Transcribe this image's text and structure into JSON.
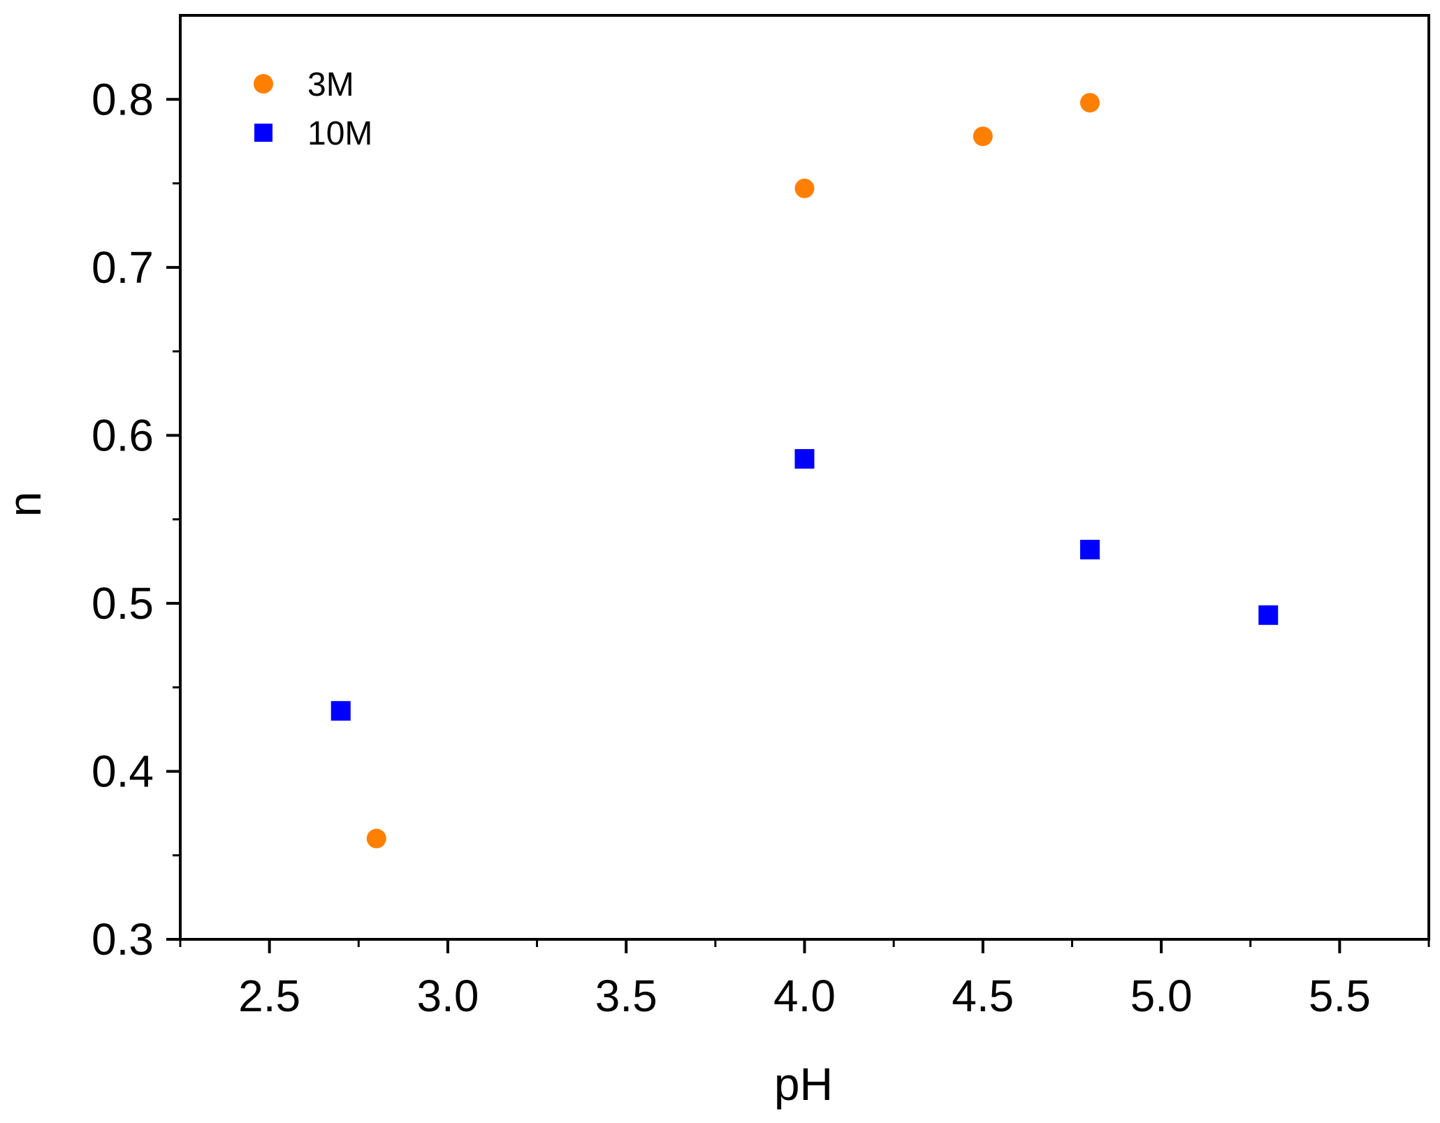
{
  "chart_data": {
    "type": "scatter",
    "xlabel": "pH",
    "ylabel": "n",
    "xlim": [
      2.25,
      5.75
    ],
    "ylim": [
      0.3,
      0.85
    ],
    "x_ticks": [
      "2.5",
      "3.0",
      "3.5",
      "4.0",
      "4.5",
      "5.0",
      "5.5"
    ],
    "y_ticks": [
      "0.3",
      "0.4",
      "0.5",
      "0.6",
      "0.7",
      "0.8"
    ],
    "grid": false,
    "legend_position": "top-left",
    "series": [
      {
        "name": "3M",
        "marker": "circle",
        "color": "#ff8000",
        "points": [
          {
            "x": 2.8,
            "y": 0.36
          },
          {
            "x": 4.0,
            "y": 0.747
          },
          {
            "x": 4.5,
            "y": 0.778
          },
          {
            "x": 4.8,
            "y": 0.798
          }
        ]
      },
      {
        "name": "10M",
        "marker": "square",
        "color": "#0000ff",
        "points": [
          {
            "x": 2.7,
            "y": 0.436
          },
          {
            "x": 4.0,
            "y": 0.586
          },
          {
            "x": 4.8,
            "y": 0.532
          },
          {
            "x": 5.3,
            "y": 0.493
          }
        ]
      }
    ]
  }
}
